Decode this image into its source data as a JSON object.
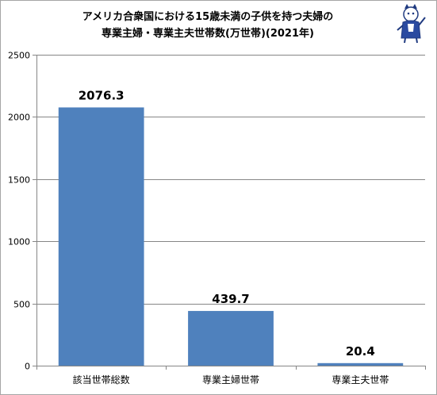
{
  "chart_data": {
    "type": "bar",
    "title": [
      "アメリカ合衆国における15歳未満の子供を持つ夫婦の",
      "専業主婦・専業主夫世帯数(万世帯)(2021年)"
    ],
    "categories": [
      "該当世帯総数",
      "専業主婦世帯",
      "専業主夫世帯"
    ],
    "values": [
      2076.3,
      439.7,
      20.4
    ],
    "data_labels": [
      "2076.3",
      "439.7",
      "20.4"
    ],
    "yticks": [
      "0",
      "500",
      "1000",
      "1500",
      "2000",
      "2500"
    ],
    "ylim": [
      0,
      2500
    ],
    "grid": true,
    "legend": "none",
    "colors": {
      "bar": "#4f81bd",
      "grid": "#868686",
      "axis": "#868686"
    }
  },
  "logo": {
    "icon": "mascot-icon"
  }
}
